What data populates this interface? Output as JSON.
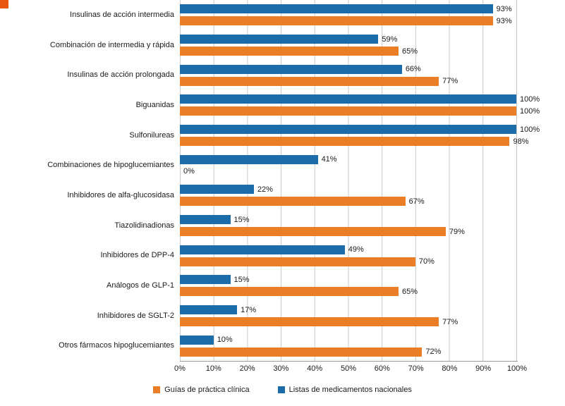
{
  "chart_data": {
    "type": "bar",
    "orientation": "horizontal",
    "title": "",
    "xlabel": "",
    "ylabel": "",
    "xlim": [
      0,
      100
    ],
    "grid": true,
    "value_suffix": "%",
    "categories": [
      "Insulinas de acción intermedia",
      "Combinación de intermedia y rápida",
      "Insulinas de acción prolongada",
      "Biguanidas",
      "Sulfonilureas",
      "Combinaciones de hipoglucemiantes",
      "Inhibidores de alfa-glucosidasa",
      "Tiazolidinadionas",
      "Inhibidores de DPP-4",
      "Análogos de GLP-1",
      "Inhibidores de SGLT-2",
      "Otros fármacos hipoglucemiantes"
    ],
    "series": [
      {
        "name": "Listas de medicamentos nacionales",
        "color": "#1b6ca8",
        "values": [
          93,
          59,
          66,
          100,
          100,
          41,
          22,
          15,
          49,
          15,
          17,
          10
        ]
      },
      {
        "name": "Guías de práctica clínica",
        "color": "#e97e26",
        "values": [
          93,
          65,
          77,
          100,
          98,
          0,
          67,
          79,
          70,
          65,
          77,
          72
        ]
      }
    ],
    "x_ticks": [
      "0%",
      "10%",
      "20%",
      "30%",
      "40%",
      "50%",
      "60%",
      "70%",
      "80%",
      "90%",
      "100%"
    ],
    "legend_position": "bottom",
    "legend": [
      {
        "label": "Guías de práctica clínica",
        "color": "#e97e26"
      },
      {
        "label": "Listas de medicamentos nacionales",
        "color": "#1b6ca8"
      }
    ],
    "corner_marker_color": "#e8560f"
  }
}
